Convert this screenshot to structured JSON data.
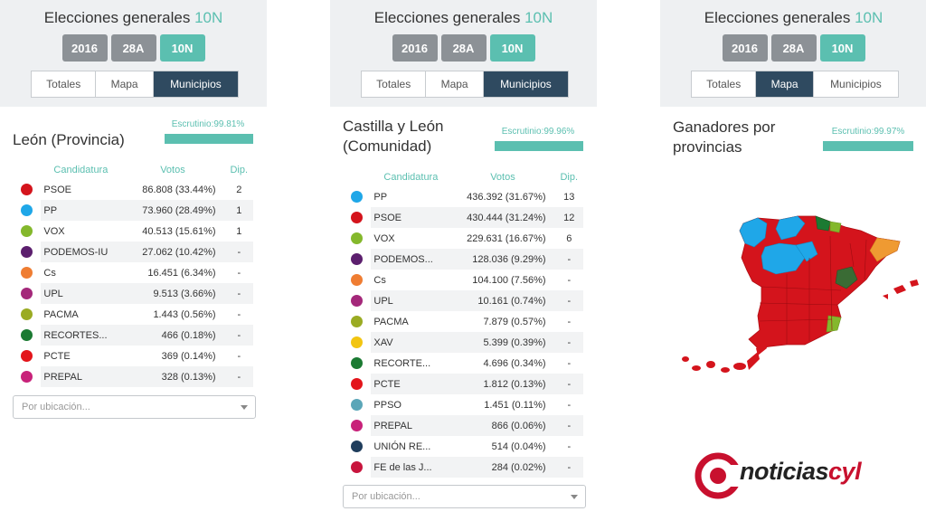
{
  "colors": {
    "accent": "#5bbfb0",
    "active_tab": "#2f4a60",
    "inactive_year": "#8c9196",
    "map_red": "#d4141c",
    "logo_red": "#c8102e"
  },
  "widgets": [
    {
      "title_main": "Elecciones generales",
      "title_accent": "10N",
      "years": [
        "2016",
        "28A",
        "10N"
      ],
      "tabs": [
        "Totales",
        "Mapa",
        "Municipios"
      ],
      "region": "León (Provincia)",
      "escrutinio": "Escrutinio:99.81%",
      "headers": {
        "candidatura": "Candidatura",
        "votos": "Votos",
        "dip": "Dip."
      },
      "rows": [
        {
          "party": "PSOE",
          "votes": "86.808 (33.44%)",
          "dip": "2",
          "color": "#d4141c"
        },
        {
          "party": "PP",
          "votes": "73.960 (28.49%)",
          "dip": "1",
          "color": "#1fa7e8"
        },
        {
          "party": "VOX",
          "votes": "40.513 (15.61%)",
          "dip": "1",
          "color": "#84b82c"
        },
        {
          "party": "PODEMOS-IU",
          "votes": "27.062 (10.42%)",
          "dip": "-",
          "color": "#5c1f6e"
        },
        {
          "party": "Cs",
          "votes": "16.451 (6.34%)",
          "dip": "-",
          "color": "#ef7d32"
        },
        {
          "party": "UPL",
          "votes": "9.513 (3.66%)",
          "dip": "-",
          "color": "#a4287a"
        },
        {
          "party": "PACMA",
          "votes": "1.443 (0.56%)",
          "dip": "-",
          "color": "#9aab23"
        },
        {
          "party": "RECORTES...",
          "votes": "466 (0.18%)",
          "dip": "-",
          "color": "#1b7a32"
        },
        {
          "party": "PCTE",
          "votes": "369 (0.14%)",
          "dip": "-",
          "color": "#e3151b"
        },
        {
          "party": "PREPAL",
          "votes": "328 (0.13%)",
          "dip": "-",
          "color": "#c8227a"
        }
      ],
      "select_placeholder": "Por ubicación..."
    },
    {
      "title_main": "Elecciones generales",
      "title_accent": "10N",
      "years": [
        "2016",
        "28A",
        "10N"
      ],
      "tabs": [
        "Totales",
        "Mapa",
        "Municipios"
      ],
      "region_line1": "Castilla y León",
      "region_line2": "(Comunidad)",
      "escrutinio": "Escrutinio:99.96%",
      "headers": {
        "candidatura": "Candidatura",
        "votos": "Votos",
        "dip": "Dip."
      },
      "rows": [
        {
          "party": "PP",
          "votes": "436.392 (31.67%)",
          "dip": "13",
          "color": "#1fa7e8"
        },
        {
          "party": "PSOE",
          "votes": "430.444 (31.24%)",
          "dip": "12",
          "color": "#d4141c"
        },
        {
          "party": "VOX",
          "votes": "229.631 (16.67%)",
          "dip": "6",
          "color": "#84b82c"
        },
        {
          "party": "PODEMOS...",
          "votes": "128.036 (9.29%)",
          "dip": "-",
          "color": "#5c1f6e"
        },
        {
          "party": "Cs",
          "votes": "104.100 (7.56%)",
          "dip": "-",
          "color": "#ef7d32"
        },
        {
          "party": "UPL",
          "votes": "10.161 (0.74%)",
          "dip": "-",
          "color": "#a4287a"
        },
        {
          "party": "PACMA",
          "votes": "7.879 (0.57%)",
          "dip": "-",
          "color": "#9aab23"
        },
        {
          "party": "XAV",
          "votes": "5.399 (0.39%)",
          "dip": "-",
          "color": "#f2c511"
        },
        {
          "party": "RECORTE...",
          "votes": "4.696 (0.34%)",
          "dip": "-",
          "color": "#1b7a32"
        },
        {
          "party": "PCTE",
          "votes": "1.812 (0.13%)",
          "dip": "-",
          "color": "#e3151b"
        },
        {
          "party": "PPSO",
          "votes": "1.451 (0.11%)",
          "dip": "-",
          "color": "#5ba6b8"
        },
        {
          "party": "PREPAL",
          "votes": "866 (0.06%)",
          "dip": "-",
          "color": "#c8227a"
        },
        {
          "party": "UNIÓN RE...",
          "votes": "514 (0.04%)",
          "dip": "-",
          "color": "#1f3d5c"
        },
        {
          "party": "FE de las J...",
          "votes": "284 (0.02%)",
          "dip": "-",
          "color": "#c8153d"
        }
      ],
      "select_placeholder": "Por ubicación..."
    },
    {
      "title_main": "Elecciones generales",
      "title_accent": "10N",
      "years": [
        "2016",
        "28A",
        "10N"
      ],
      "tabs": [
        "Totales",
        "Mapa",
        "Municipios"
      ],
      "map_title_line1": "Ganadores por",
      "map_title_line2": "provincias",
      "escrutinio": "Escrutinio:99.97%"
    }
  ],
  "logo": {
    "text_main": "noticias",
    "text_accent": "cyl"
  }
}
